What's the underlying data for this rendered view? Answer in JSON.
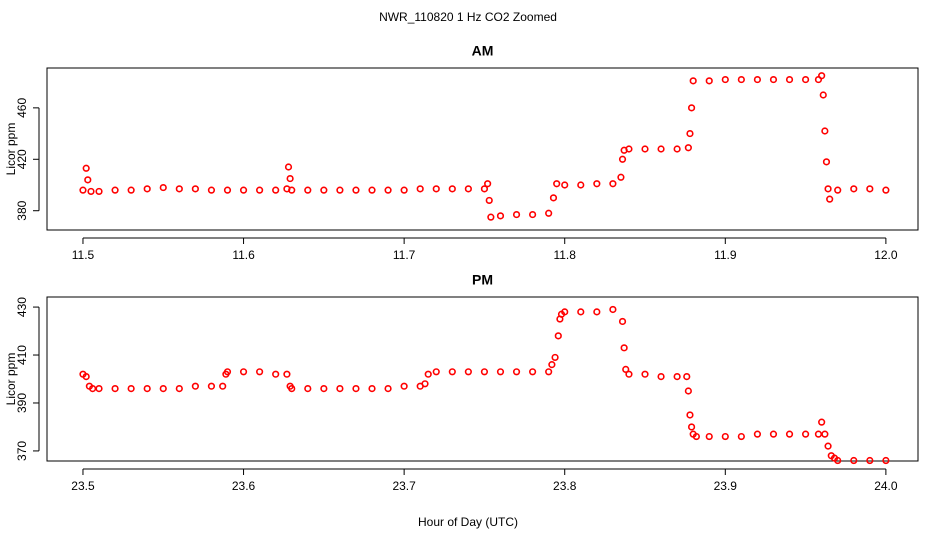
{
  "title": "NWR_110820  1 Hz CO2 Zoomed",
  "x_label": "Hour of Day (UTC)",
  "chart_data": [
    {
      "type": "scatter",
      "title": "AM",
      "y_label": "Licor ppm",
      "color": "#ff0000",
      "xlim": [
        11.4776,
        12.02
      ],
      "ylim": [
        365,
        491
      ],
      "xticks": [
        11.5,
        11.6,
        11.7,
        11.8,
        11.9,
        {
          "value": 12,
          "label": "12.0"
        }
      ],
      "yticks": [
        380,
        420,
        460
      ],
      "x": [
        11.5,
        11.502,
        11.503,
        11.505,
        11.51,
        11.52,
        11.53,
        11.54,
        11.55,
        11.56,
        11.57,
        11.58,
        11.59,
        11.6,
        11.61,
        11.62,
        11.627,
        11.628,
        11.629,
        11.63,
        11.64,
        11.65,
        11.66,
        11.67,
        11.68,
        11.69,
        11.7,
        11.71,
        11.72,
        11.73,
        11.74,
        11.75,
        11.752,
        11.753,
        11.754,
        11.76,
        11.77,
        11.78,
        11.79,
        11.793,
        11.795,
        11.8,
        11.81,
        11.82,
        11.83,
        11.835,
        11.836,
        11.837,
        11.84,
        11.85,
        11.86,
        11.87,
        11.877,
        11.878,
        11.879,
        11.88,
        11.89,
        11.9,
        11.91,
        11.92,
        11.93,
        11.94,
        11.95,
        11.958,
        11.96,
        11.961,
        11.962,
        11.963,
        11.964,
        11.965,
        11.97,
        11.98,
        11.99,
        12.0
      ],
      "values": [
        396,
        413,
        404,
        395,
        395,
        396,
        396,
        397,
        398,
        397,
        397,
        396,
        396,
        396,
        396,
        396,
        397,
        414,
        405,
        396,
        396,
        396,
        396,
        396,
        396,
        396,
        396,
        397,
        397,
        397,
        397,
        397,
        401,
        388,
        375,
        376,
        377,
        377,
        378,
        390,
        401,
        400,
        400,
        401,
        401,
        406,
        420,
        427,
        428,
        428,
        428,
        428,
        429,
        440,
        460,
        481,
        481,
        482,
        482,
        482,
        482,
        482,
        482,
        482,
        485,
        470,
        442,
        418,
        397,
        389,
        396,
        397,
        397,
        396
      ]
    },
    {
      "type": "scatter",
      "title": "PM",
      "y_label": "Licor ppm",
      "color": "#ff0000",
      "xlim": [
        23.4776,
        24.02
      ],
      "ylim": [
        365.8,
        434.2
      ],
      "xticks": [
        23.5,
        23.6,
        23.7,
        23.8,
        23.9,
        {
          "value": 24,
          "label": "24.0"
        }
      ],
      "yticks": [
        370,
        390,
        410,
        430
      ],
      "x": [
        23.5,
        23.502,
        23.504,
        23.506,
        23.51,
        23.52,
        23.53,
        23.54,
        23.55,
        23.56,
        23.57,
        23.58,
        23.587,
        23.589,
        23.59,
        23.6,
        23.61,
        23.62,
        23.627,
        23.629,
        23.63,
        23.64,
        23.65,
        23.66,
        23.67,
        23.68,
        23.69,
        23.7,
        23.71,
        23.713,
        23.715,
        23.72,
        23.73,
        23.74,
        23.75,
        23.76,
        23.77,
        23.78,
        23.79,
        23.792,
        23.794,
        23.796,
        23.797,
        23.798,
        23.8,
        23.81,
        23.82,
        23.83,
        23.836,
        23.837,
        23.838,
        23.84,
        23.85,
        23.86,
        23.87,
        23.876,
        23.877,
        23.878,
        23.879,
        23.88,
        23.882,
        23.89,
        23.9,
        23.91,
        23.92,
        23.93,
        23.94,
        23.95,
        23.958,
        23.96,
        23.962,
        23.964,
        23.966,
        23.968,
        23.97,
        23.98,
        23.99,
        24.0
      ],
      "values": [
        402,
        401,
        397,
        396,
        396,
        396,
        396,
        396,
        396,
        396,
        397,
        397,
        397,
        402,
        403,
        403,
        403,
        402,
        402,
        397,
        396,
        396,
        396,
        396,
        396,
        396,
        396,
        397,
        397,
        398,
        402,
        403,
        403,
        403,
        403,
        403,
        403,
        403,
        403,
        406,
        409,
        418,
        425,
        427,
        428,
        428,
        428,
        429,
        424,
        413,
        404,
        402,
        402,
        401,
        401,
        401,
        395,
        385,
        380,
        377,
        376,
        376,
        376,
        376,
        377,
        377,
        377,
        377,
        377,
        382,
        377,
        372,
        368,
        367,
        366,
        366,
        366,
        366
      ]
    }
  ]
}
